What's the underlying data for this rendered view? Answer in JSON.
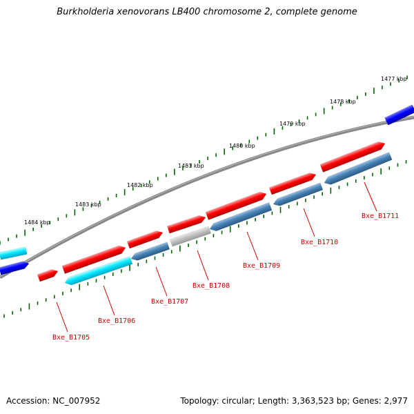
{
  "title": "Burkholderia xenovorans LB400 chromosome 2, complete genome",
  "footer": {
    "accession": "Accession: NC_007952",
    "summary": "Topology: circular; Length: 3,363,523 bp; Genes: 2,977"
  },
  "colors": {
    "forward_gene": "#ff0000",
    "reverse_gene": "#4682b4",
    "reverse_other": "#00ffff",
    "forward_other": "#0000ff",
    "pseudo_gene": "#c0c0c0",
    "backbone": "#808080",
    "tick": "#006400",
    "label": "#cc0000"
  },
  "scale_labels": [
    "1477 kbp",
    "1478 kbp",
    "1479 kbp",
    "1480 kbp",
    "1481 kbp",
    "1482 kbp",
    "1483 kbp",
    "1484 kbp"
  ],
  "gene_labels": [
    "Bxe_B1705",
    "Bxe_B1706",
    "Bxe_B1707",
    "Bxe_B1708",
    "Bxe_B1709",
    "Bxe_B1710",
    "Bxe_B1711"
  ]
}
